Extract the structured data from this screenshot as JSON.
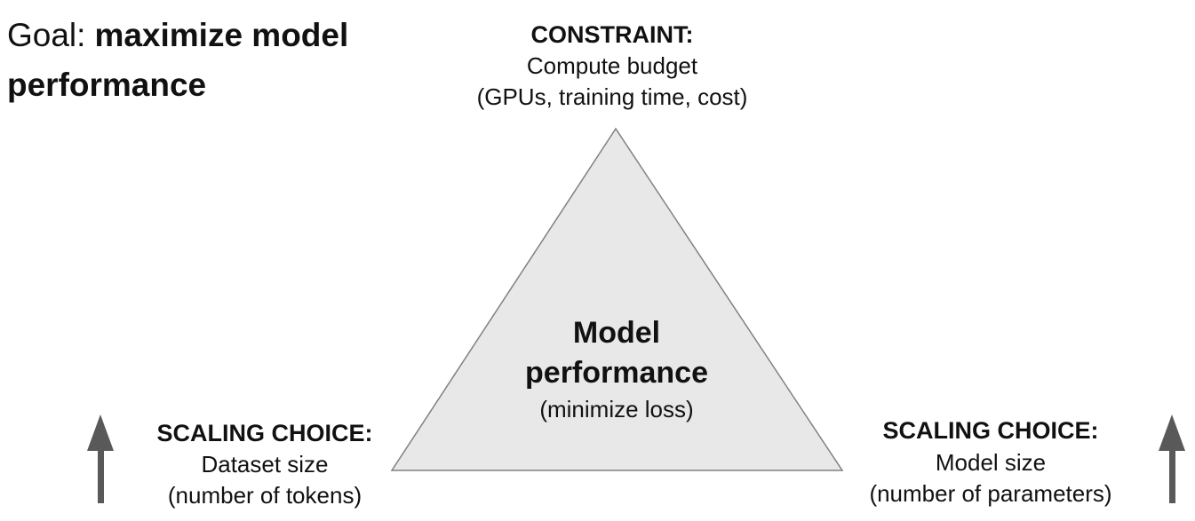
{
  "goal": {
    "label": "Goal:",
    "lines": [
      "maximize model",
      "performance"
    ]
  },
  "constraint": {
    "label": "CONSTRAINT:",
    "lines": [
      "Compute budget",
      "(GPUs, training time, cost)"
    ]
  },
  "center": {
    "lines": [
      "Model",
      "performance"
    ],
    "note": "(minimize loss)"
  },
  "left_choice": {
    "label": "SCALING CHOICE:",
    "lines": [
      "Dataset size",
      "(number of tokens)"
    ]
  },
  "right_choice": {
    "label": "SCALING CHOICE:",
    "lines": [
      "Model size",
      "(number of parameters)"
    ]
  }
}
